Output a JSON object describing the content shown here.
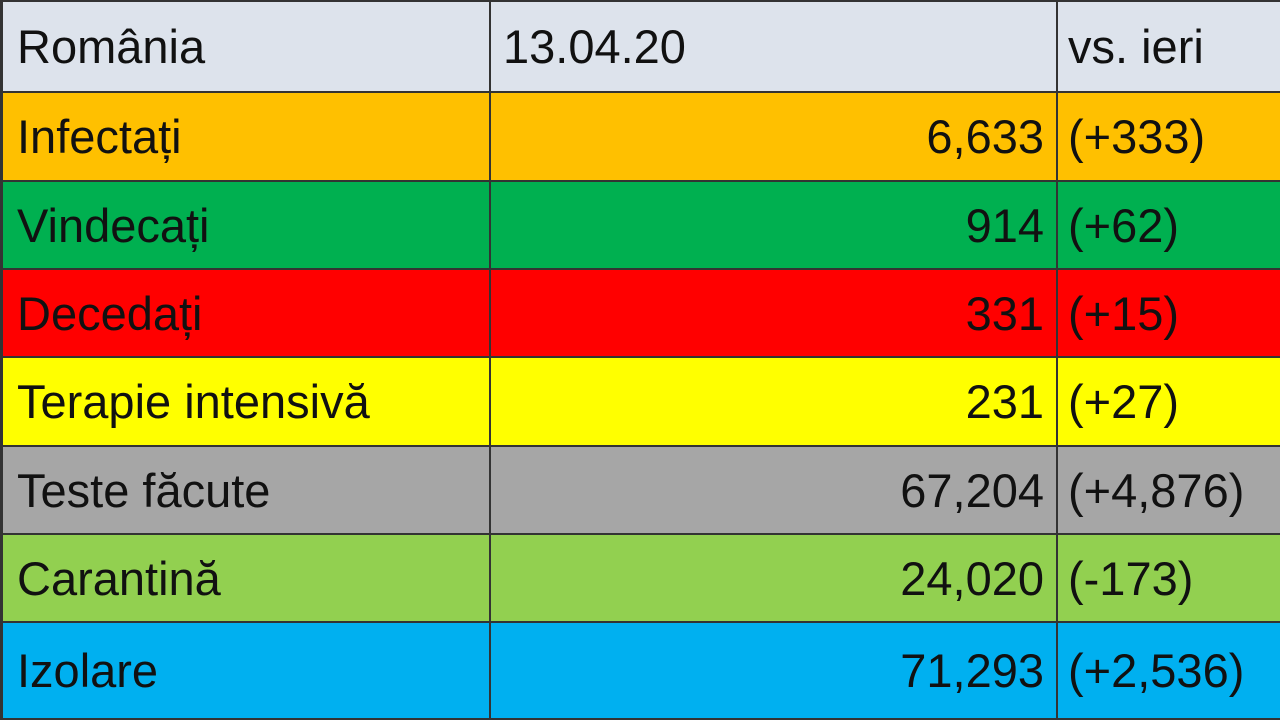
{
  "table": {
    "header": [
      "România",
      "13.04.20",
      "vs. ieri"
    ],
    "rows": [
      [
        "Infectați",
        "6,633",
        "(+333)"
      ],
      [
        "Vindecați",
        "914",
        "(+62)"
      ],
      [
        "Decedați",
        "331",
        "(+15)"
      ],
      [
        "Terapie intensivă",
        "231",
        "(+27)"
      ],
      [
        "Teste făcute",
        "67,204",
        "(+4,876)"
      ],
      [
        "Carantină",
        "24,020",
        "(-173)"
      ],
      [
        "Izolare",
        "71,293",
        "(+2,536)"
      ]
    ]
  }
}
